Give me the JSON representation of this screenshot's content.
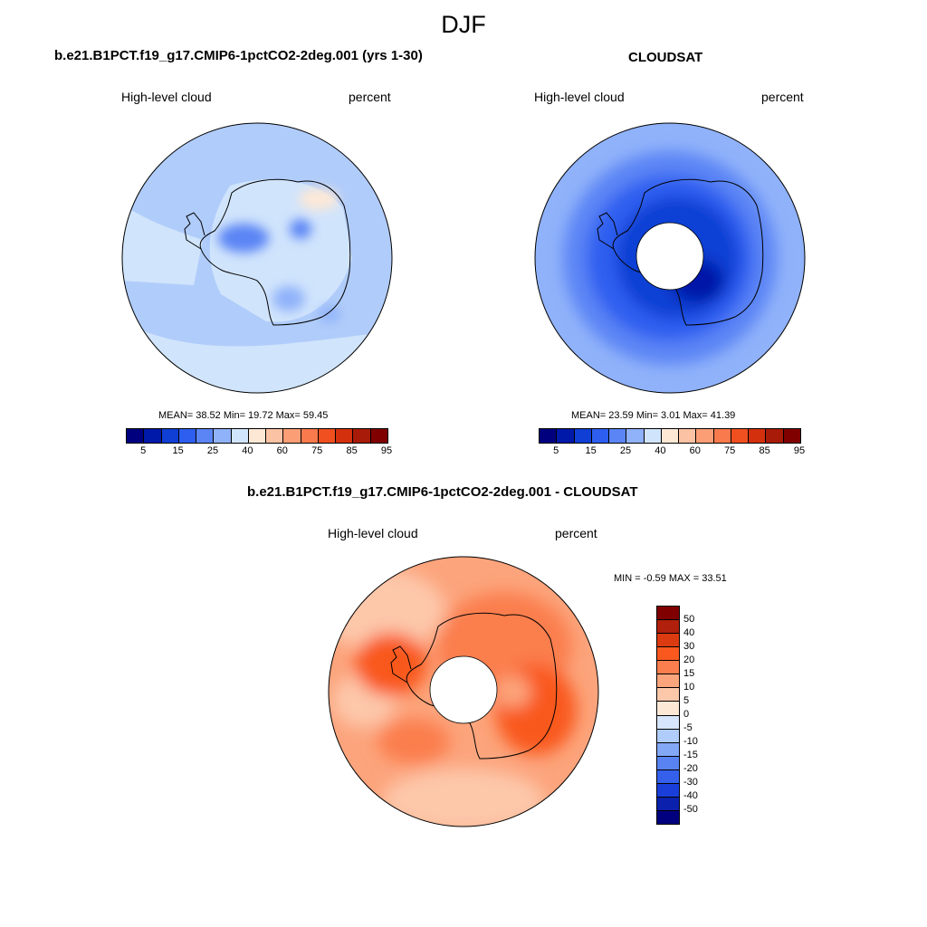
{
  "figure": {
    "title": "DJF"
  },
  "panels": {
    "model": {
      "title": "b.e21.B1PCT.f19_g17.CMIP6-1pctCO2-2deg.001 (yrs 1-30)",
      "variable": "High-level cloud",
      "units": "percent",
      "stats": "MEAN=  38.52  Min=  19.72  Max=  59.45"
    },
    "obs": {
      "title": "CLOUDSAT",
      "variable": "High-level cloud",
      "units": "percent",
      "stats": "MEAN=  23.59  Min=   3.01  Max=  41.39"
    },
    "diff": {
      "title": "b.e21.B1PCT.f19_g17.CMIP6-1pctCO2-2deg.001 - CLOUDSAT",
      "variable": "High-level cloud",
      "units": "percent",
      "stats": "MIN =  -0.59 MAX =  33.51"
    }
  },
  "colors": {
    "abs_colorbar": [
      "#00007f",
      "#0019a8",
      "#0f3fd4",
      "#2d5ef0",
      "#5b85f5",
      "#90b2fa",
      "#d0e4fc",
      "#fde8d6",
      "#fcc2a4",
      "#fb9e76",
      "#f97a4d",
      "#f0501f",
      "#d3300e",
      "#a81b08",
      "#800000"
    ],
    "diff_colorbar": [
      "#800000",
      "#b0200c",
      "#dc3a10",
      "#f9581e",
      "#fb7e4e",
      "#fca47c",
      "#fdc7aa",
      "#fde8d6",
      "#d7e6fc",
      "#b0ccfa",
      "#82a8f6",
      "#5983f2",
      "#3560ec",
      "#1a3ed9",
      "#0b21ad",
      "#00007f"
    ],
    "land_outline": "#000000"
  },
  "chart_data": [
    {
      "type": "heatmap",
      "title": "b.e21.B1PCT.f19_g17.CMIP6-1pctCO2-2deg.001 (yrs 1-30)",
      "projection": "south-polar-stereographic",
      "variable": "High-level cloud",
      "units": "percent",
      "mean": 38.52,
      "min": 19.72,
      "max": 59.45,
      "colorbar_ticks": [
        5,
        15,
        25,
        40,
        60,
        75,
        85,
        95
      ],
      "colorbar_orientation": "horizontal"
    },
    {
      "type": "heatmap",
      "title": "CLOUDSAT",
      "projection": "south-polar-stereographic",
      "variable": "High-level cloud",
      "units": "percent",
      "mean": 23.59,
      "min": 3.01,
      "max": 41.39,
      "colorbar_ticks": [
        5,
        15,
        25,
        40,
        60,
        75,
        85,
        95
      ],
      "colorbar_orientation": "horizontal"
    },
    {
      "type": "heatmap",
      "title": "b.e21.B1PCT.f19_g17.CMIP6-1pctCO2-2deg.001 - CLOUDSAT",
      "projection": "south-polar-stereographic",
      "variable": "High-level cloud",
      "units": "percent",
      "min": -0.59,
      "max": 33.51,
      "colorbar_ticks": [
        50,
        40,
        30,
        20,
        15,
        10,
        5,
        0,
        -5,
        -10,
        -15,
        -20,
        -30,
        -40,
        -50
      ],
      "colorbar_orientation": "vertical"
    }
  ]
}
